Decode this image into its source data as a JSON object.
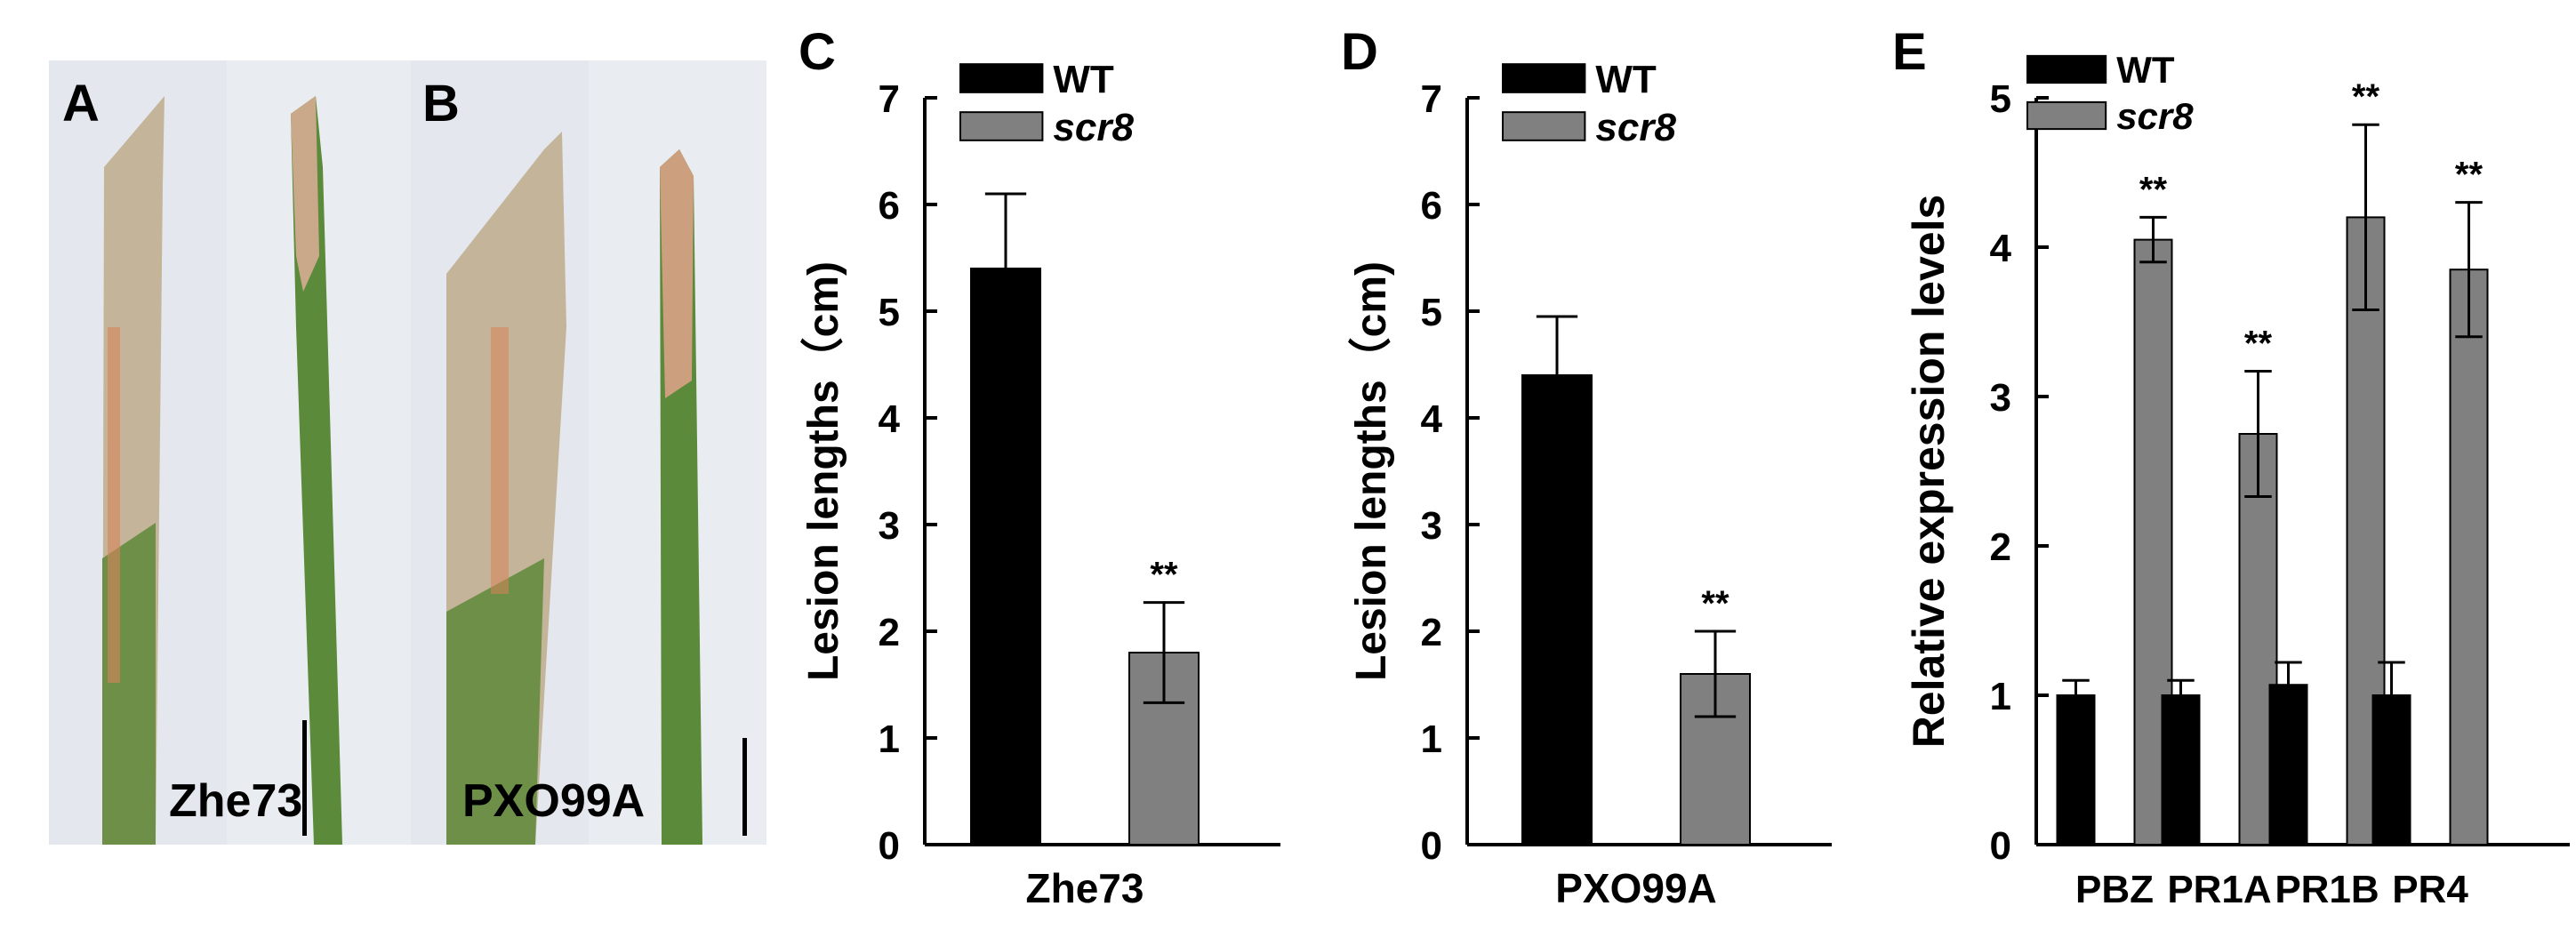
{
  "panels": {
    "A": {
      "letter": "A",
      "caption": "Zhe73"
    },
    "B": {
      "letter": "B",
      "caption": "PXO99A"
    },
    "C": {
      "letter": "C"
    },
    "D": {
      "letter": "D"
    },
    "E": {
      "letter": "E"
    }
  },
  "colors": {
    "wt": "#000000",
    "scr8": "#808080",
    "leaf_green": "#5a8a3a",
    "leaf_lesion": "#c7b396",
    "leaf_orange": "#d9835a",
    "photo_bg": "#e4e8ee"
  },
  "chart_data": [
    {
      "id": "C",
      "type": "bar",
      "categories": [
        "Zhe73"
      ],
      "series": [
        {
          "name": "WT",
          "values": [
            5.4
          ],
          "errors": [
            0.7
          ],
          "color": "#000000"
        },
        {
          "name": "scr8",
          "values": [
            1.8
          ],
          "errors": [
            0.47
          ],
          "color": "#808080"
        }
      ],
      "annotations": [
        {
          "series": "scr8",
          "category": "Zhe73",
          "text": "**"
        }
      ],
      "ylabel": "Lesion lengths（cm)",
      "ylim": [
        0,
        7
      ],
      "yticks": [
        "0",
        "1",
        "2",
        "3",
        "4",
        "5",
        "6",
        "7"
      ],
      "legend": "top-left"
    },
    {
      "id": "D",
      "type": "bar",
      "categories": [
        "PXO99A"
      ],
      "series": [
        {
          "name": "WT",
          "values": [
            4.4
          ],
          "errors": [
            0.55
          ],
          "color": "#000000"
        },
        {
          "name": "scr8",
          "values": [
            1.6
          ],
          "errors": [
            0.4
          ],
          "color": "#808080"
        }
      ],
      "annotations": [
        {
          "series": "scr8",
          "category": "PXO99A",
          "text": "**"
        }
      ],
      "ylabel": "Lesion lengths（cm)",
      "ylim": [
        0,
        7
      ],
      "yticks": [
        "0",
        "1",
        "2",
        "3",
        "4",
        "5",
        "6",
        "7"
      ],
      "legend": "top-left"
    },
    {
      "id": "E",
      "type": "bar",
      "categories": [
        "PBZ",
        "PR1A",
        "PR1B",
        "PR4"
      ],
      "series": [
        {
          "name": "WT",
          "values": [
            1.0,
            1.0,
            1.07,
            1.0
          ],
          "errors": [
            0.1,
            0.1,
            0.15,
            0.22
          ],
          "color": "#000000"
        },
        {
          "name": "scr8",
          "values": [
            4.05,
            2.75,
            4.2,
            3.85
          ],
          "errors": [
            0.15,
            0.42,
            0.62,
            0.45
          ],
          "color": "#808080"
        }
      ],
      "annotations": [
        {
          "series": "scr8",
          "category": "PBZ",
          "text": "**"
        },
        {
          "series": "scr8",
          "category": "PR1A",
          "text": "**"
        },
        {
          "series": "scr8",
          "category": "PR1B",
          "text": "**"
        },
        {
          "series": "scr8",
          "category": "PR4",
          "text": "**"
        }
      ],
      "ylabel": "Relative expression levels",
      "ylim": [
        0,
        5
      ],
      "yticks": [
        "0",
        "1",
        "2",
        "3",
        "4",
        "5"
      ],
      "legend": "top-left"
    }
  ]
}
